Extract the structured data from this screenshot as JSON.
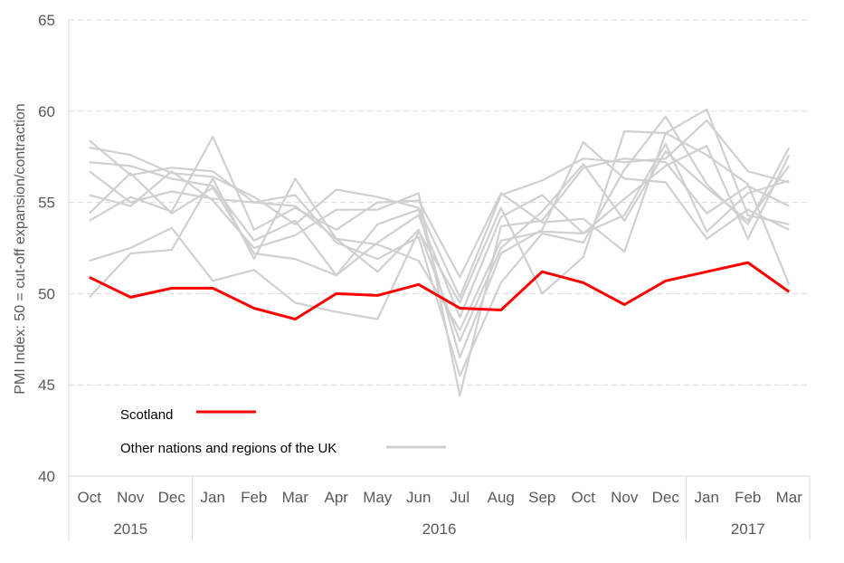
{
  "chart_data": {
    "type": "line",
    "title": "",
    "ylabel": "PMI Index: 50 = cut-off expansion/contraction",
    "xlabel": "",
    "ylim": [
      40,
      65
    ],
    "yticks": [
      "40",
      "45",
      "50",
      "55",
      "60",
      "65"
    ],
    "grid": "horizontal-dashed",
    "categories": [
      "Oct",
      "Nov",
      "Dec",
      "Jan",
      "Feb",
      "Mar",
      "Apr",
      "May",
      "Jun",
      "Jul",
      "Aug",
      "Sep",
      "Oct",
      "Nov",
      "Dec",
      "Jan",
      "Feb",
      "Mar"
    ],
    "years": [
      {
        "label": "2015",
        "from": 0,
        "to": 2
      },
      {
        "label": "2016",
        "from": 3,
        "to": 14
      },
      {
        "label": "2017",
        "from": 15,
        "to": 17
      }
    ],
    "legend_placement": "bottom-left",
    "highlight": {
      "name": "Scotland",
      "color": "#ff0000",
      "values": [
        50.9,
        49.8,
        50.3,
        50.3,
        49.2,
        48.6,
        50.0,
        49.9,
        50.5,
        49.2,
        49.1,
        51.2,
        50.6,
        49.4,
        50.7,
        51.2,
        51.7,
        50.1
      ]
    },
    "others_label": "Other nations and regions of the UK",
    "others_color": "#d0d0d0",
    "others": [
      [
        58.4,
        56.5,
        56.9,
        56.7,
        55.0,
        54.8,
        53.0,
        51.2,
        53.5,
        47.4,
        52.5,
        54.5,
        57.1,
        54.0,
        57.8,
        55.8,
        54.0,
        57.0
      ],
      [
        58.0,
        57.6,
        56.6,
        56.4,
        55.3,
        53.8,
        55.7,
        55.3,
        54.7,
        49.8,
        55.4,
        56.2,
        57.4,
        57.2,
        57.4,
        59.5,
        56.7,
        56.1
      ],
      [
        57.2,
        57.0,
        56.3,
        55.9,
        52.9,
        54.0,
        51.0,
        52.8,
        54.3,
        48.7,
        54.2,
        55.4,
        53.3,
        55.2,
        57.0,
        58.1,
        53.0,
        57.6
      ],
      [
        56.7,
        55.0,
        55.6,
        55.2,
        55.0,
        55.4,
        52.8,
        51.9,
        53.1,
        45.5,
        50.6,
        53.3,
        52.8,
        56.8,
        59.7,
        56.0,
        53.8,
        58.0
      ],
      [
        55.4,
        54.8,
        56.7,
        55.1,
        52.5,
        53.2,
        54.6,
        54.6,
        55.5,
        44.4,
        53.7,
        54.0,
        56.9,
        57.4,
        57.2,
        54.4,
        55.9,
        54.8
      ],
      [
        54.4,
        56.6,
        54.4,
        55.8,
        52.2,
        51.9,
        51.0,
        53.8,
        54.6,
        46.5,
        52.2,
        53.5,
        58.3,
        56.3,
        56.1,
        53.0,
        54.6,
        53.5
      ],
      [
        54.0,
        55.3,
        54.5,
        58.6,
        53.5,
        54.7,
        53.5,
        55.0,
        55.1,
        50.9,
        55.5,
        53.9,
        54.1,
        52.3,
        58.8,
        60.1,
        54.3,
        53.8
      ],
      [
        51.8,
        52.5,
        53.6,
        50.7,
        51.3,
        49.5,
        49.0,
        48.6,
        53.4,
        49.5,
        54.7,
        50.0,
        52.0,
        58.9,
        58.8,
        57.6,
        56.0,
        50.5
      ],
      [
        49.8,
        52.2,
        52.4,
        56.3,
        51.9,
        56.3,
        53.0,
        52.7,
        51.8,
        48.0,
        52.9,
        53.4,
        53.3,
        54.3,
        58.2,
        53.4,
        55.5,
        56.2
      ]
    ]
  }
}
